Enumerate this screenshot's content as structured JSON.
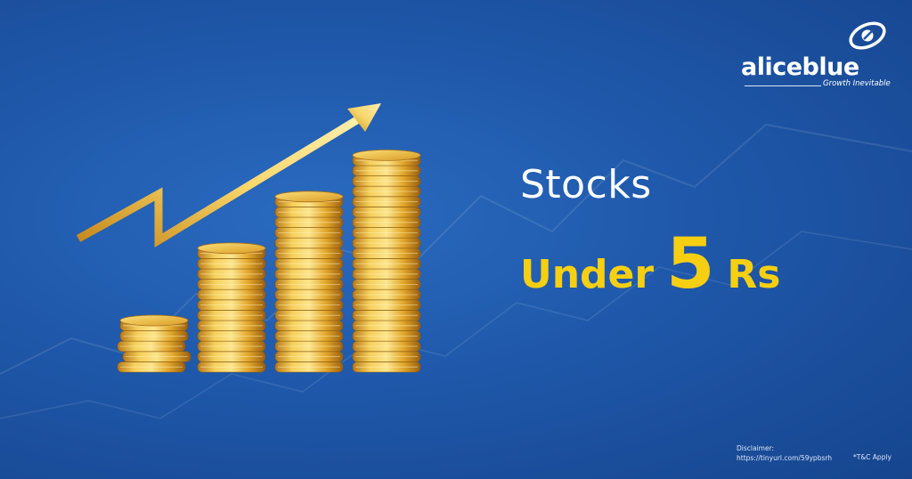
{
  "brand": {
    "name": "aliceblue",
    "tagline": "Growth Inevitable"
  },
  "headline": {
    "line1": "Stocks",
    "under": "Under",
    "number": "5",
    "currency": "Rs"
  },
  "footer": {
    "disclaimer_label": "Disclaimer:",
    "disclaimer_url": "https://tinyurl.com/59ypbsrh",
    "terms": "*T&C Apply"
  },
  "colors": {
    "background": "#1f58aa",
    "headline_accent": "#f7cf12",
    "gold": "#e0a820",
    "text": "#ffffff"
  },
  "illustration": {
    "icon": "gold-coin-stacks-with-rising-arrow",
    "coin_stacks": [
      5,
      12,
      17,
      21
    ]
  }
}
